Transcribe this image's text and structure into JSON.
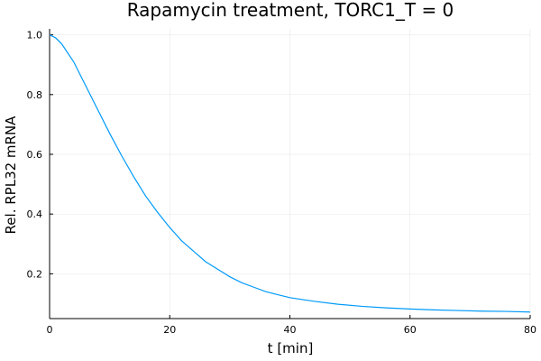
{
  "chart_data": {
    "type": "line",
    "title": "Rapamycin treatment, TORC1_T = 0",
    "xlabel": "t [min]",
    "ylabel": "Rel. RPL32 mRNA",
    "xlim": [
      0,
      80
    ],
    "ylim": [
      0.05,
      1.02
    ],
    "xticks": [
      0,
      20,
      40,
      60,
      80
    ],
    "xtick_labels": [
      "0",
      "20",
      "40",
      "60",
      "80"
    ],
    "yticks": [
      0.2,
      0.4,
      0.6,
      0.8,
      1.0
    ],
    "ytick_labels": [
      "0.2",
      "0.4",
      "0.6",
      "0.8",
      "1.0"
    ],
    "grid": true,
    "legend": "none",
    "series": [
      {
        "color": "#009AFA",
        "x": [
          0,
          1,
          2,
          4,
          6,
          8,
          10,
          12,
          14,
          16,
          18,
          20,
          22,
          24,
          26,
          28,
          30,
          32,
          34,
          36,
          38,
          40,
          44,
          48,
          52,
          56,
          60,
          64,
          68,
          72,
          76,
          80
        ],
        "y": [
          1.0,
          0.99,
          0.97,
          0.91,
          0.83,
          0.75,
          0.67,
          0.595,
          0.525,
          0.46,
          0.405,
          0.355,
          0.31,
          0.275,
          0.24,
          0.215,
          0.19,
          0.17,
          0.155,
          0.14,
          0.13,
          0.12,
          0.108,
          0.098,
          0.091,
          0.086,
          0.082,
          0.079,
          0.077,
          0.075,
          0.074,
          0.072
        ]
      }
    ]
  }
}
